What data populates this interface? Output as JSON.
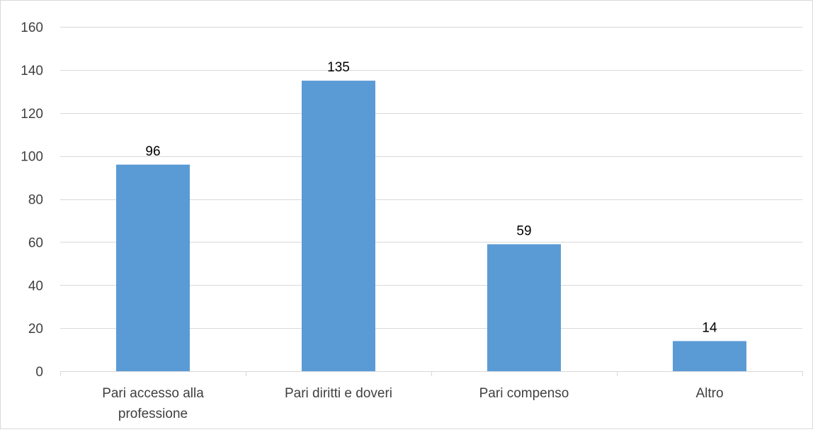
{
  "chart_data": {
    "type": "bar",
    "categories": [
      "Pari accesso alla professione",
      "Pari diritti e doveri",
      "Pari compenso",
      "Altro"
    ],
    "category_lines": [
      [
        "Pari accesso alla",
        "professione"
      ],
      [
        "Pari diritti e doveri"
      ],
      [
        "Pari compenso"
      ],
      [
        "Altro"
      ]
    ],
    "values": [
      96,
      135,
      59,
      14
    ],
    "data_labels": [
      "96",
      "135",
      "59",
      "14"
    ],
    "ylim": [
      0,
      160
    ],
    "y_ticks": [
      0,
      20,
      40,
      60,
      80,
      100,
      120,
      140,
      160
    ],
    "y_tick_labels": [
      "0",
      "20",
      "40",
      "60",
      "80",
      "100",
      "120",
      "140",
      "160"
    ],
    "grid": true,
    "legend": false,
    "title": "",
    "xlabel": "",
    "ylabel": "",
    "bar_color": "#5b9bd5",
    "grid_color": "#d9d9d9",
    "text_color": "#404040"
  }
}
